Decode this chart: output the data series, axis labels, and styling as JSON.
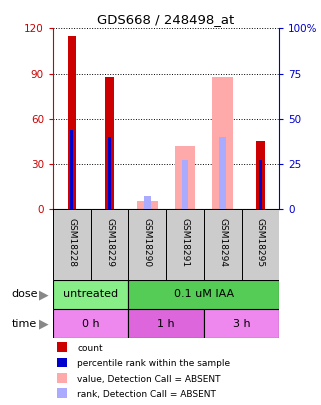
{
  "title": "GDS668 / 248498_at",
  "samples": [
    "GSM18228",
    "GSM18229",
    "GSM18290",
    "GSM18291",
    "GSM18294",
    "GSM18295"
  ],
  "count_values": [
    115,
    88,
    0,
    0,
    0,
    45
  ],
  "percentile_values": [
    44,
    40,
    0,
    0,
    0,
    27
  ],
  "absent_value_values": [
    0,
    0,
    5,
    42,
    88,
    0
  ],
  "absent_rank_values": [
    0,
    0,
    7,
    27,
    40,
    0
  ],
  "has_count": [
    true,
    true,
    false,
    false,
    false,
    true
  ],
  "has_percentile": [
    true,
    true,
    false,
    false,
    false,
    true
  ],
  "has_absent_value": [
    false,
    false,
    true,
    true,
    true,
    false
  ],
  "has_absent_rank": [
    false,
    false,
    true,
    true,
    true,
    false
  ],
  "ylim_left": [
    0,
    120
  ],
  "ylim_right": [
    0,
    100
  ],
  "yticks_left": [
    0,
    30,
    60,
    90,
    120
  ],
  "yticks_right": [
    0,
    25,
    50,
    75,
    100
  ],
  "ytick_labels_left": [
    "0",
    "30",
    "60",
    "90",
    "120"
  ],
  "ytick_labels_right": [
    "0",
    "25",
    "50",
    "75",
    "100%"
  ],
  "dose_groups": [
    {
      "label": "untreated",
      "start": 0,
      "end": 2,
      "color": "#88ee88"
    },
    {
      "label": "0.1 uM IAA",
      "start": 2,
      "end": 6,
      "color": "#55cc55"
    }
  ],
  "time_groups": [
    {
      "label": "0 h",
      "start": 0,
      "end": 2,
      "color": "#ee88ee"
    },
    {
      "label": "1 h",
      "start": 2,
      "end": 4,
      "color": "#dd66dd"
    },
    {
      "label": "3 h",
      "start": 4,
      "end": 6,
      "color": "#ee88ee"
    }
  ],
  "bar_color_count": "#cc0000",
  "bar_color_percentile": "#0000cc",
  "bar_color_absent_value": "#ffaaaa",
  "bar_color_absent_rank": "#aaaaff",
  "sample_area_color": "#cccccc",
  "left_axis_color": "#cc0000",
  "right_axis_color": "#0000cc",
  "legend_items": [
    {
      "color": "#cc0000",
      "label": "count"
    },
    {
      "color": "#0000cc",
      "label": "percentile rank within the sample"
    },
    {
      "color": "#ffaaaa",
      "label": "value, Detection Call = ABSENT"
    },
    {
      "color": "#aaaaff",
      "label": "rank, Detection Call = ABSENT"
    }
  ]
}
